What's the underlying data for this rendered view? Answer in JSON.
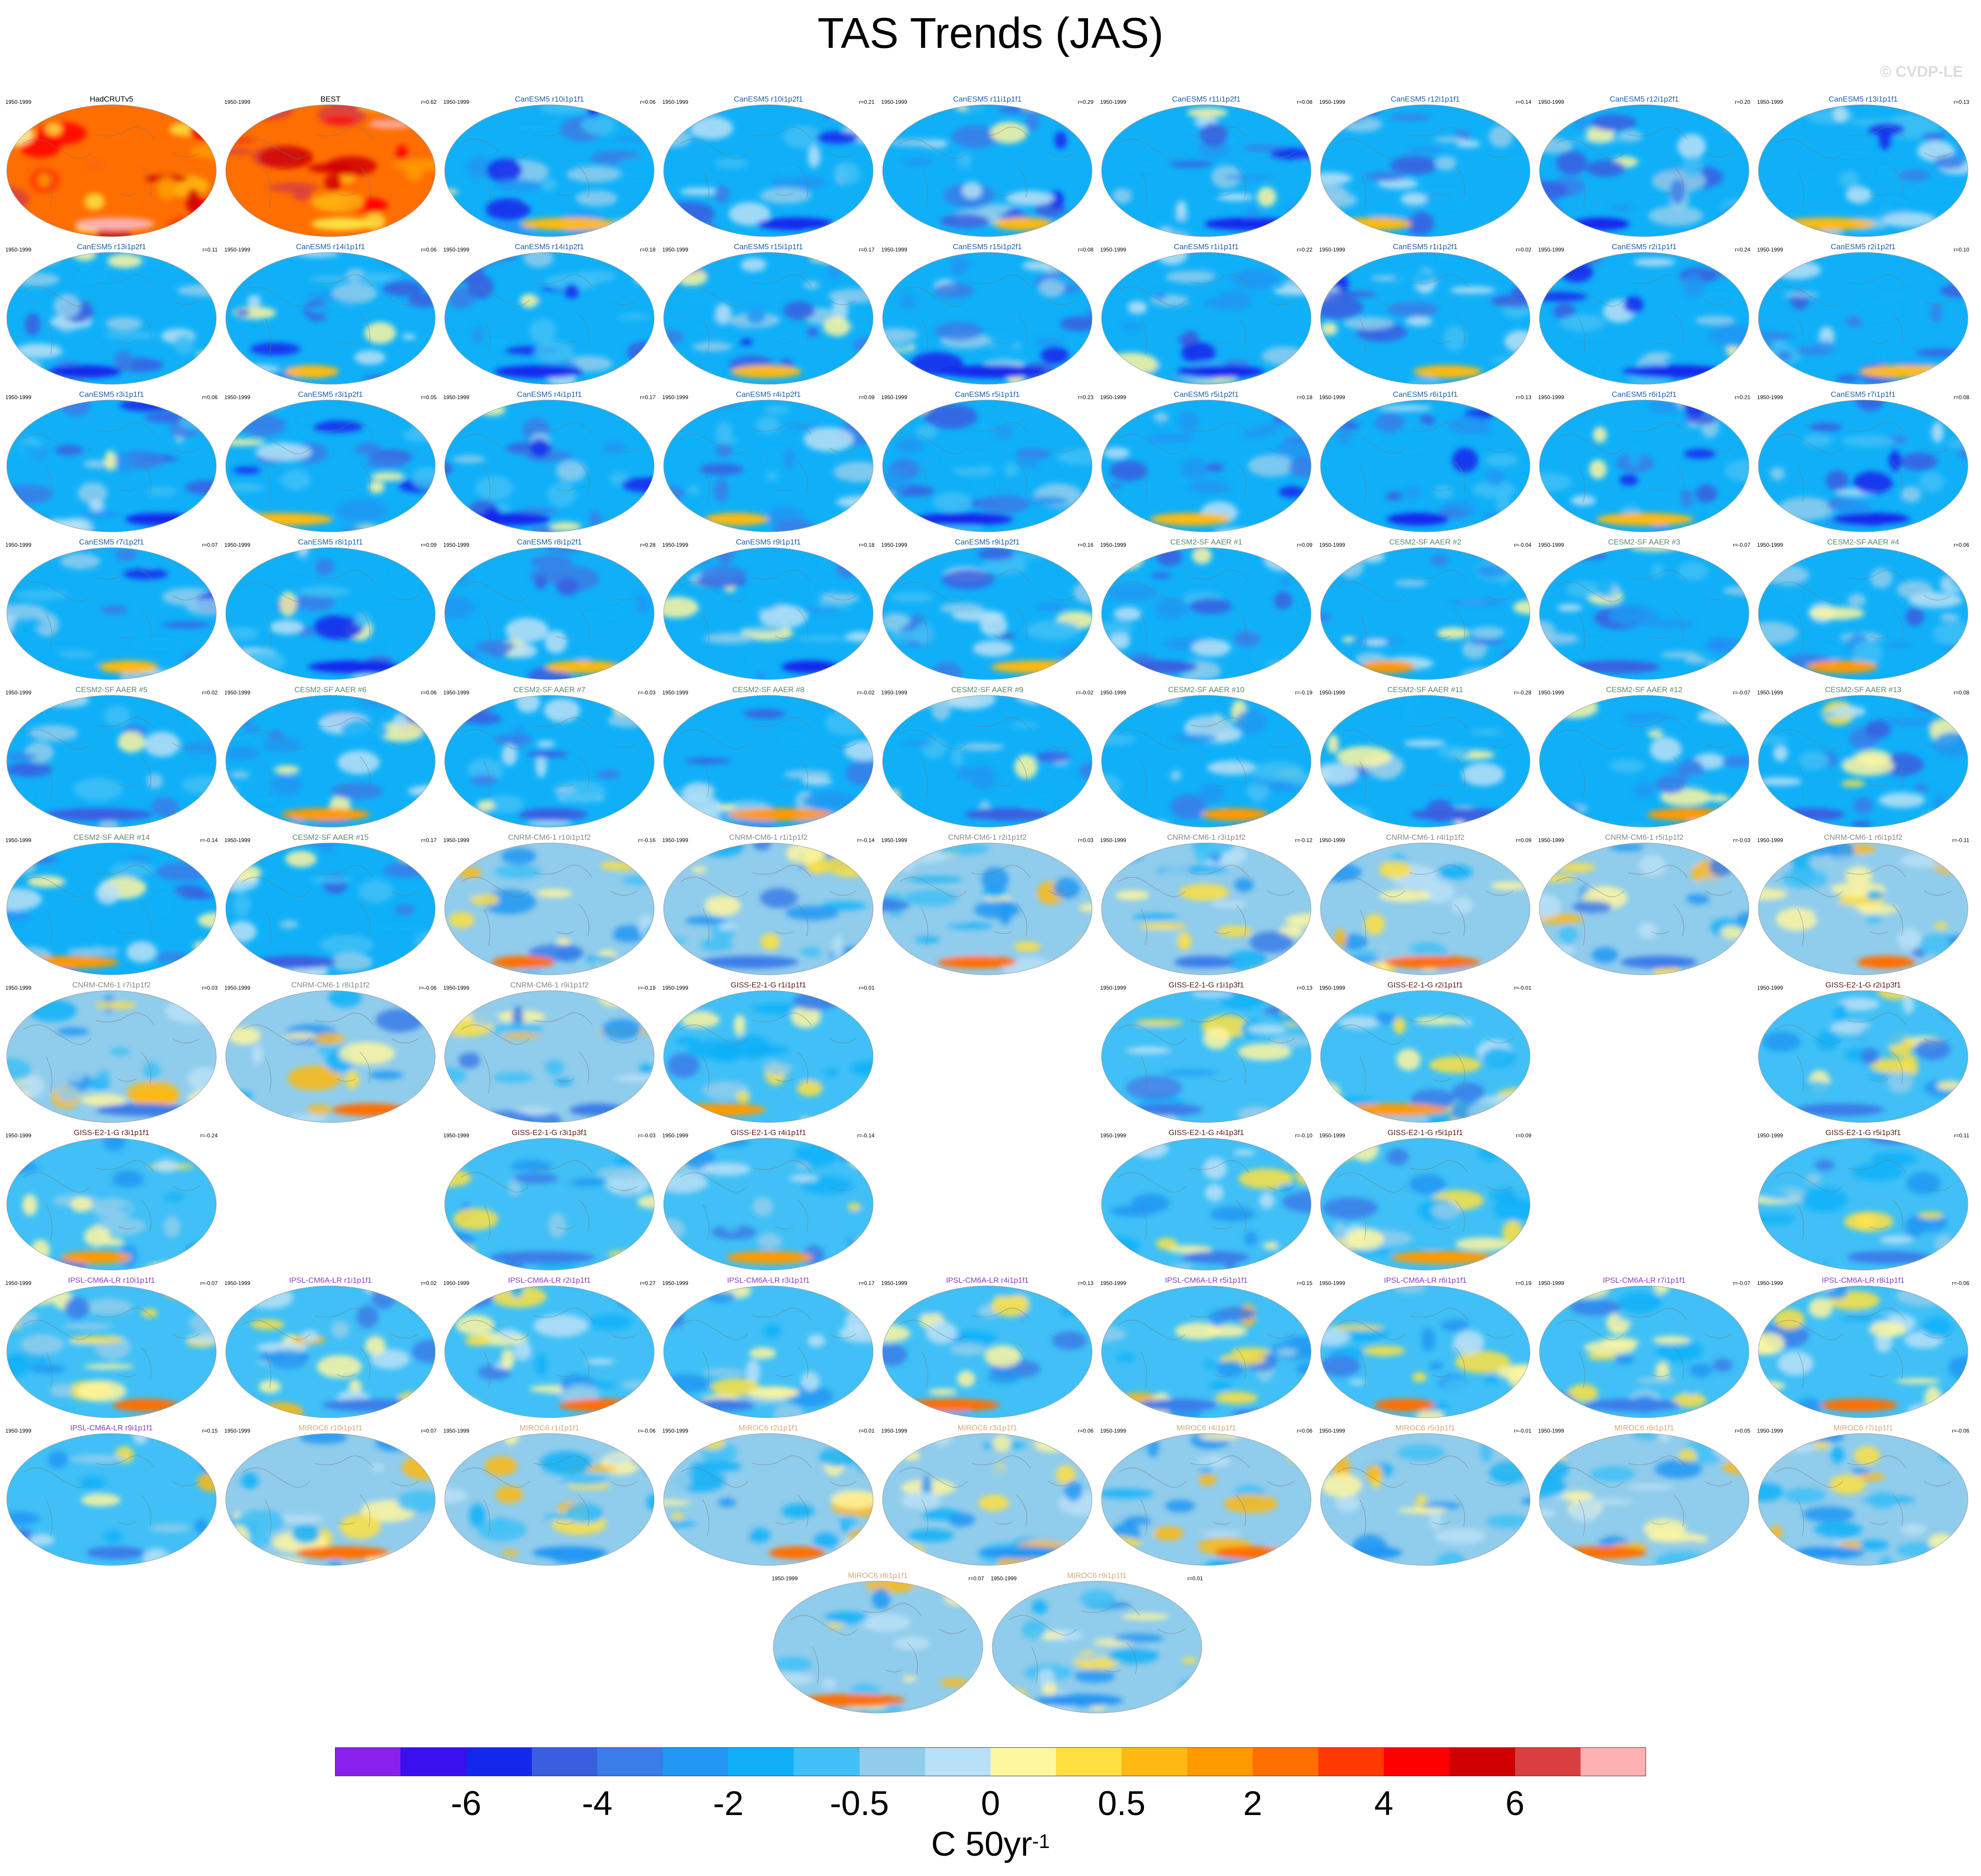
{
  "title": "TAS Trends (JAS)",
  "credit": "© CVDP-LE",
  "chart_data": {
    "type": "map-grid",
    "period": "1950-1999",
    "colorbar": {
      "colors": [
        "#8a20ec",
        "#3a10f0",
        "#1427ec",
        "#3a5ee0",
        "#3a7de8",
        "#2196f3",
        "#10b0f8",
        "#40c0f6",
        "#90ccec",
        "#b8e0f6",
        "#fff6a0",
        "#ffe040",
        "#ffb910",
        "#ff9a00",
        "#ff6e00",
        "#ff3a00",
        "#ff0000",
        "#d00000",
        "#d84040",
        "#ffb0b0"
      ],
      "ticks": [
        {
          "label": "-6",
          "boundary": 2
        },
        {
          "label": "-4",
          "boundary": 4
        },
        {
          "label": "-2",
          "boundary": 6
        },
        {
          "label": "-0.5",
          "boundary": 8
        },
        {
          "label": "0",
          "boundary": 10
        },
        {
          "label": "0.5",
          "boundary": 12
        },
        {
          "label": "2",
          "boundary": 14
        },
        {
          "label": "4",
          "boundary": 16
        },
        {
          "label": "6",
          "boundary": 18
        }
      ],
      "units": "C 50yr",
      "units_exponent": "-1"
    },
    "panels": [
      {
        "name": "HadCRUTv5",
        "r": "",
        "row": 0,
        "col": 0,
        "group": "obs",
        "tone": 0.62
      },
      {
        "name": "BEST",
        "r": "r=0.62",
        "row": 0,
        "col": 1,
        "group": "obs",
        "tone": 0.7
      },
      {
        "name": "CanESM5 r10i1p1f1",
        "r": "r=0.06",
        "row": 0,
        "col": 2,
        "group": "CanESM5",
        "tone": -0.55
      },
      {
        "name": "CanESM5 r10i1p2f1",
        "r": "r=0.21",
        "row": 0,
        "col": 3,
        "group": "CanESM5",
        "tone": -0.55
      },
      {
        "name": "CanESM5 r11i1p1f1",
        "r": "r=0.29",
        "row": 0,
        "col": 4,
        "group": "CanESM5",
        "tone": -0.55
      },
      {
        "name": "CanESM5 r11i1p2f1",
        "r": "r=0.08",
        "row": 0,
        "col": 5,
        "group": "CanESM5",
        "tone": -0.55
      },
      {
        "name": "CanESM5 r12i1p1f1",
        "r": "r=0.14",
        "row": 0,
        "col": 6,
        "group": "CanESM5",
        "tone": -0.55
      },
      {
        "name": "CanESM5 r12i1p2f1",
        "r": "r=0.20",
        "row": 0,
        "col": 7,
        "group": "CanESM5",
        "tone": -0.55
      },
      {
        "name": "CanESM5 r13i1p1f1",
        "r": "r=0.13",
        "row": 0,
        "col": 8,
        "group": "CanESM5",
        "tone": -0.55
      },
      {
        "name": "CanESM5 r13i1p2f1",
        "r": "r=0.11",
        "row": 1,
        "col": 0,
        "group": "CanESM5",
        "tone": -0.55
      },
      {
        "name": "CanESM5 r14i1p1f1",
        "r": "r=0.06",
        "row": 1,
        "col": 1,
        "group": "CanESM5",
        "tone": -0.55
      },
      {
        "name": "CanESM5 r14i1p2f1",
        "r": "r=0.18",
        "row": 1,
        "col": 2,
        "group": "CanESM5",
        "tone": -0.55
      },
      {
        "name": "CanESM5 r15i1p1f1",
        "r": "r=0.17",
        "row": 1,
        "col": 3,
        "group": "CanESM5",
        "tone": -0.55
      },
      {
        "name": "CanESM5 r15i1p2f1",
        "r": "r=0.08",
        "row": 1,
        "col": 4,
        "group": "CanESM5",
        "tone": -0.55
      },
      {
        "name": "CanESM5 r1i1p1f1",
        "r": "r=0.22",
        "row": 1,
        "col": 5,
        "group": "CanESM5",
        "tone": -0.55
      },
      {
        "name": "CanESM5 r1i1p2f1",
        "r": "r=0.02",
        "row": 1,
        "col": 6,
        "group": "CanESM5",
        "tone": -0.55
      },
      {
        "name": "CanESM5 r2i1p1f1",
        "r": "r=0.24",
        "row": 1,
        "col": 7,
        "group": "CanESM5",
        "tone": -0.55
      },
      {
        "name": "CanESM5 r2i1p2f1",
        "r": "r=0.10",
        "row": 1,
        "col": 8,
        "group": "CanESM5",
        "tone": -0.55
      },
      {
        "name": "CanESM5 r3i1p1f1",
        "r": "r=0.06",
        "row": 2,
        "col": 0,
        "group": "CanESM5",
        "tone": -0.55
      },
      {
        "name": "CanESM5 r3i1p2f1",
        "r": "r=0.05",
        "row": 2,
        "col": 1,
        "group": "CanESM5",
        "tone": -0.55
      },
      {
        "name": "CanESM5 r4i1p1f1",
        "r": "r=0.17",
        "row": 2,
        "col": 2,
        "group": "CanESM5",
        "tone": -0.55
      },
      {
        "name": "CanESM5 r4i1p2f1",
        "r": "r=0.09",
        "row": 2,
        "col": 3,
        "group": "CanESM5",
        "tone": -0.55
      },
      {
        "name": "CanESM5 r5i1p1f1",
        "r": "r=0.23",
        "row": 2,
        "col": 4,
        "group": "CanESM5",
        "tone": -0.55
      },
      {
        "name": "CanESM5 r5i1p2f1",
        "r": "r=0.18",
        "row": 2,
        "col": 5,
        "group": "CanESM5",
        "tone": -0.55
      },
      {
        "name": "CanESM5 r6i1p1f1",
        "r": "r=0.13",
        "row": 2,
        "col": 6,
        "group": "CanESM5",
        "tone": -0.55
      },
      {
        "name": "CanESM5 r6i1p2f1",
        "r": "r=0.21",
        "row": 2,
        "col": 7,
        "group": "CanESM5",
        "tone": -0.55
      },
      {
        "name": "CanESM5 r7i1p1f1",
        "r": "r=0.08",
        "row": 2,
        "col": 8,
        "group": "CanESM5",
        "tone": -0.55
      },
      {
        "name": "CanESM5 r7i1p2f1",
        "r": "r=0.07",
        "row": 3,
        "col": 0,
        "group": "CanESM5",
        "tone": -0.55
      },
      {
        "name": "CanESM5 r8i1p1f1",
        "r": "r=0.09",
        "row": 3,
        "col": 1,
        "group": "CanESM5",
        "tone": -0.55
      },
      {
        "name": "CanESM5 r8i1p2f1",
        "r": "r=0.28",
        "row": 3,
        "col": 2,
        "group": "CanESM5",
        "tone": -0.55
      },
      {
        "name": "CanESM5 r9i1p1f1",
        "r": "r=0.18",
        "row": 3,
        "col": 3,
        "group": "CanESM5",
        "tone": -0.55
      },
      {
        "name": "CanESM5 r9i1p2f1",
        "r": "r=0.16",
        "row": 3,
        "col": 4,
        "group": "CanESM5",
        "tone": -0.55
      },
      {
        "name": "CESM2-SF AAER #1",
        "r": "r=0.09",
        "row": 3,
        "col": 5,
        "group": "CESM2",
        "tone": -0.45
      },
      {
        "name": "CESM2-SF AAER #2",
        "r": "r=-0.04",
        "row": 3,
        "col": 6,
        "group": "CESM2",
        "tone": -0.45
      },
      {
        "name": "CESM2-SF AAER #3",
        "r": "r=-0.07",
        "row": 3,
        "col": 7,
        "group": "CESM2",
        "tone": -0.45
      },
      {
        "name": "CESM2-SF AAER #4",
        "r": "r=0.06",
        "row": 3,
        "col": 8,
        "group": "CESM2",
        "tone": -0.45
      },
      {
        "name": "CESM2-SF AAER #5",
        "r": "r=0.02",
        "row": 4,
        "col": 0,
        "group": "CESM2",
        "tone": -0.45
      },
      {
        "name": "CESM2-SF AAER #6",
        "r": "r=0.06",
        "row": 4,
        "col": 1,
        "group": "CESM2",
        "tone": -0.45
      },
      {
        "name": "CESM2-SF AAER #7",
        "r": "r=-0.03",
        "row": 4,
        "col": 2,
        "group": "CESM2",
        "tone": -0.45
      },
      {
        "name": "CESM2-SF AAER #8",
        "r": "r=-0.02",
        "row": 4,
        "col": 3,
        "group": "CESM2",
        "tone": -0.45
      },
      {
        "name": "CESM2-SF AAER #9",
        "r": "r=-0.02",
        "row": 4,
        "col": 4,
        "group": "CESM2",
        "tone": -0.45
      },
      {
        "name": "CESM2-SF AAER #10",
        "r": "r=-0.19",
        "row": 4,
        "col": 5,
        "group": "CESM2",
        "tone": -0.45
      },
      {
        "name": "CESM2-SF AAER #11",
        "r": "r=-0.28",
        "row": 4,
        "col": 6,
        "group": "CESM2",
        "tone": -0.45
      },
      {
        "name": "CESM2-SF AAER #12",
        "r": "r=-0.07",
        "row": 4,
        "col": 7,
        "group": "CESM2",
        "tone": -0.45
      },
      {
        "name": "CESM2-SF AAER #13",
        "r": "r=0.08",
        "row": 4,
        "col": 8,
        "group": "CESM2",
        "tone": -0.45
      },
      {
        "name": "CESM2-SF AAER #14",
        "r": "r=-0.14",
        "row": 5,
        "col": 0,
        "group": "CESM2",
        "tone": -0.45
      },
      {
        "name": "CESM2-SF AAER #15",
        "r": "r=0.17",
        "row": 5,
        "col": 1,
        "group": "CESM2",
        "tone": -0.45
      },
      {
        "name": "CNRM-CM6-1 r10i1p1f2",
        "r": "r=-0.16",
        "row": 5,
        "col": 2,
        "group": "CNRM",
        "tone": -0.25
      },
      {
        "name": "CNRM-CM6-1 r1i1p1f2",
        "r": "r=-0.14",
        "row": 5,
        "col": 3,
        "group": "CNRM",
        "tone": -0.25
      },
      {
        "name": "CNRM-CM6-1 r2i1p1f2",
        "r": "r=0.03",
        "row": 5,
        "col": 4,
        "group": "CNRM",
        "tone": -0.25
      },
      {
        "name": "CNRM-CM6-1 r3i1p1f2",
        "r": "r=-0.12",
        "row": 5,
        "col": 5,
        "group": "CNRM",
        "tone": -0.25
      },
      {
        "name": "CNRM-CM6-1 r4i1p1f2",
        "r": "r=0.09",
        "row": 5,
        "col": 6,
        "group": "CNRM",
        "tone": -0.25
      },
      {
        "name": "CNRM-CM6-1 r5i1p1f2",
        "r": "r=-0.03",
        "row": 5,
        "col": 7,
        "group": "CNRM",
        "tone": -0.25
      },
      {
        "name": "CNRM-CM6-1 r6i1p1f2",
        "r": "r=-0.11",
        "row": 5,
        "col": 8,
        "group": "CNRM",
        "tone": -0.25
      },
      {
        "name": "CNRM-CM6-1 r7i1p1f2",
        "r": "r=0.03",
        "row": 6,
        "col": 0,
        "group": "CNRM",
        "tone": -0.25
      },
      {
        "name": "CNRM-CM6-1 r8i1p1f2",
        "r": "r=-0.06",
        "row": 6,
        "col": 1,
        "group": "CNRM",
        "tone": -0.25
      },
      {
        "name": "CNRM-CM6-1 r9i1p1f2",
        "r": "r=-0.19",
        "row": 6,
        "col": 2,
        "group": "CNRM",
        "tone": -0.25
      },
      {
        "name": "GISS-E2-1-G r1i1p1f1",
        "r": "r=0.01",
        "row": 6,
        "col": 3,
        "group": "GISS",
        "tone": -0.35
      },
      {
        "name": "GISS-E2-1-G r1i1p3f1",
        "r": "r=0.13",
        "row": 6,
        "col": 5,
        "group": "GISS",
        "tone": -0.35
      },
      {
        "name": "GISS-E2-1-G r2i1p1f1",
        "r": "r=-0.01",
        "row": 6,
        "col": 6,
        "group": "GISS",
        "tone": -0.35
      },
      {
        "name": "GISS-E2-1-G r2i1p3f1",
        "r": "",
        "row": 6,
        "col": 8,
        "group": "GISS",
        "tone": -0.35
      },
      {
        "name": "GISS-E2-1-G r3i1p1f1",
        "r": "r=-0.24",
        "row": 7,
        "col": 0,
        "group": "GISS",
        "tone": -0.35
      },
      {
        "name": "GISS-E2-1-G r3i1p3f1",
        "r": "r=-0.03",
        "row": 7,
        "col": 2,
        "group": "GISS",
        "tone": -0.35
      },
      {
        "name": "GISS-E2-1-G r4i1p1f1",
        "r": "r=-0.14",
        "row": 7,
        "col": 3,
        "group": "GISS",
        "tone": -0.35
      },
      {
        "name": "GISS-E2-1-G r4i1p3f1",
        "r": "r=-0.10",
        "row": 7,
        "col": 5,
        "group": "GISS",
        "tone": -0.35
      },
      {
        "name": "GISS-E2-1-G r5i1p1f1",
        "r": "r=0.09",
        "row": 7,
        "col": 6,
        "group": "GISS",
        "tone": -0.35
      },
      {
        "name": "GISS-E2-1-G r5i1p3f1",
        "r": "r=0.11",
        "row": 7,
        "col": 8,
        "group": "GISS",
        "tone": -0.35
      },
      {
        "name": "IPSL-CM6A-LR r10i1p1f1",
        "r": "r=-0.07",
        "row": 8,
        "col": 0,
        "group": "IPSL",
        "tone": -0.3
      },
      {
        "name": "IPSL-CM6A-LR r1i1p1f1",
        "r": "r=0.02",
        "row": 8,
        "col": 1,
        "group": "IPSL",
        "tone": -0.3
      },
      {
        "name": "IPSL-CM6A-LR r2i1p1f1",
        "r": "r=0.27",
        "row": 8,
        "col": 2,
        "group": "IPSL",
        "tone": -0.3
      },
      {
        "name": "IPSL-CM6A-LR r3i1p1f1",
        "r": "r=0.17",
        "row": 8,
        "col": 3,
        "group": "IPSL",
        "tone": -0.3
      },
      {
        "name": "IPSL-CM6A-LR r4i1p1f1",
        "r": "r=0.13",
        "row": 8,
        "col": 4,
        "group": "IPSL",
        "tone": -0.3
      },
      {
        "name": "IPSL-CM6A-LR r5i1p1f1",
        "r": "r=0.15",
        "row": 8,
        "col": 5,
        "group": "IPSL",
        "tone": -0.3
      },
      {
        "name": "IPSL-CM6A-LR r6i1p1f1",
        "r": "r=0.19",
        "row": 8,
        "col": 6,
        "group": "IPSL",
        "tone": -0.3
      },
      {
        "name": "IPSL-CM6A-LR r7i1p1f1",
        "r": "r=-0.07",
        "row": 8,
        "col": 7,
        "group": "IPSL",
        "tone": -0.3
      },
      {
        "name": "IPSL-CM6A-LR r8i1p1f1",
        "r": "r=-0.06",
        "row": 8,
        "col": 8,
        "group": "IPSL",
        "tone": -0.3
      },
      {
        "name": "IPSL-CM6A-LR r9i1p1f1",
        "r": "r=0.15",
        "row": 9,
        "col": 0,
        "group": "IPSL",
        "tone": -0.3
      },
      {
        "name": "MIROC6 r10i1p1f1",
        "r": "r=0.07",
        "row": 9,
        "col": 1,
        "group": "MIROC6",
        "tone": -0.2
      },
      {
        "name": "MIROC6 r1i1p1f1",
        "r": "r=-0.06",
        "row": 9,
        "col": 2,
        "group": "MIROC6",
        "tone": -0.2
      },
      {
        "name": "MIROC6 r2i1p1f1",
        "r": "r=0.01",
        "row": 9,
        "col": 3,
        "group": "MIROC6",
        "tone": -0.2
      },
      {
        "name": "MIROC6 r3i1p1f1",
        "r": "r=0.06",
        "row": 9,
        "col": 4,
        "group": "MIROC6",
        "tone": -0.2
      },
      {
        "name": "MIROC6 r4i1p1f1",
        "r": "r=0.06",
        "row": 9,
        "col": 5,
        "group": "MIROC6",
        "tone": -0.2
      },
      {
        "name": "MIROC6 r5i1p1f1",
        "r": "r=-0.01",
        "row": 9,
        "col": 6,
        "group": "MIROC6",
        "tone": -0.2
      },
      {
        "name": "MIROC6 r6i1p1f1",
        "r": "r=0.05",
        "row": 9,
        "col": 7,
        "group": "MIROC6",
        "tone": -0.2
      },
      {
        "name": "MIROC6 r7i1p1f1",
        "r": "r=-0.06",
        "row": 9,
        "col": 8,
        "group": "MIROC6",
        "tone": -0.2
      },
      {
        "name": "MIROC6 r8i1p1f1",
        "r": "r=0.07",
        "row": 10,
        "col": 3.5,
        "group": "MIROC6",
        "tone": -0.2
      },
      {
        "name": "MIROC6 r9i1p1f1",
        "r": "r=0.01",
        "row": 10,
        "col": 4.5,
        "group": "MIROC6",
        "tone": -0.2
      }
    ],
    "group_title_colors": {
      "obs": "#000000",
      "CanESM5": "#1f5fa8",
      "CESM2": "#5a8a6a",
      "CNRM": "#8a8a8a",
      "GISS": "#5a1a1a",
      "IPSL": "#8a3ac8",
      "MIROC6": "#d8a878"
    }
  }
}
